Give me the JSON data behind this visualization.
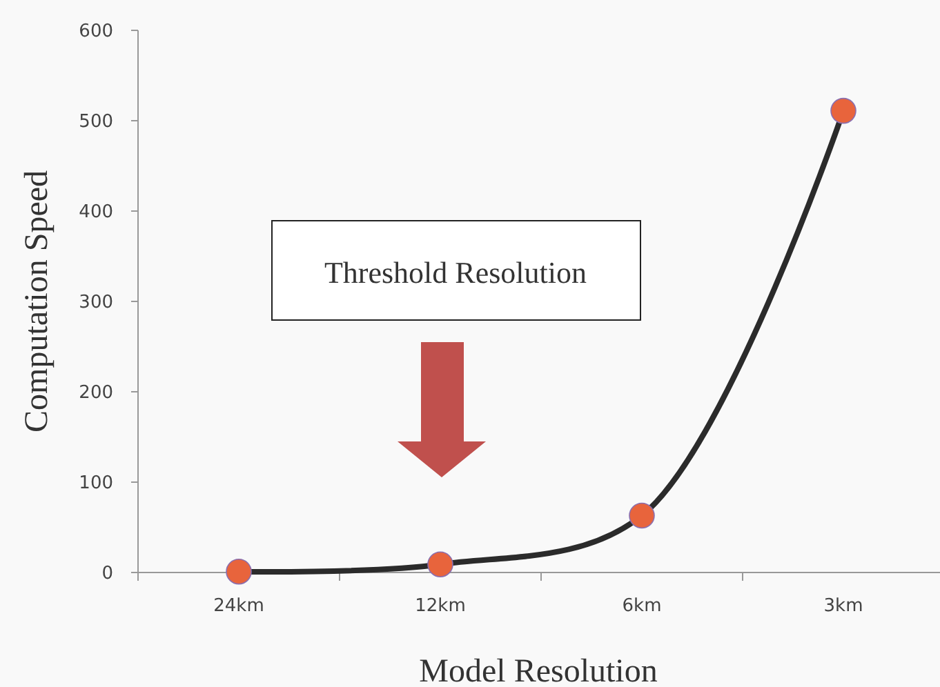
{
  "chart_data": {
    "type": "line",
    "xlabel": "Model Resolution",
    "ylabel": "Computation Speed",
    "categories": [
      "24km",
      "12km",
      "6km",
      "3km"
    ],
    "series": [
      {
        "color": "#2b2b2b",
        "colors": [
          "#e8643c",
          "#e8643c",
          "#e8643c",
          "#e8643c"
        ],
        "values": [
          1,
          9,
          63,
          511
        ]
      }
    ],
    "ylim": [
      0,
      600
    ],
    "yticks": [
      0,
      100,
      200,
      300,
      400,
      500,
      600
    ],
    "grid": false,
    "marker": "circle",
    "annotations": [
      "Threshold Resolution"
    ]
  }
}
